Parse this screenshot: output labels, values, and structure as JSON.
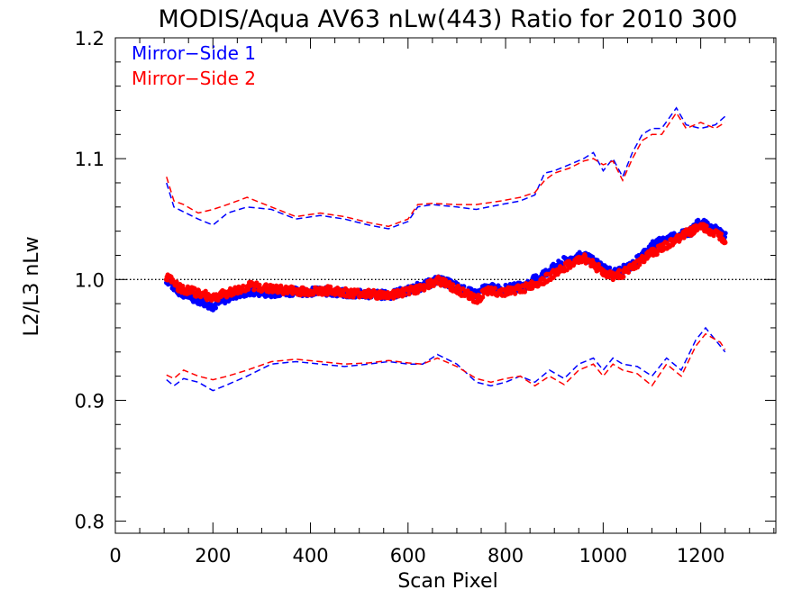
{
  "chart_data": {
    "type": "scatter",
    "title": "MODIS/Aqua AV63 nLw(443) Ratio for 2010 300",
    "xlabel": "Scan Pixel",
    "ylabel": "L2/L3 nLw",
    "xlim": [
      0,
      1354
    ],
    "ylim": [
      0.79,
      1.2
    ],
    "xticks": [
      0,
      200,
      400,
      600,
      800,
      1000,
      1200
    ],
    "xtick_labels": [
      "0",
      "200",
      "400",
      "600",
      "800",
      "1000",
      "1200"
    ],
    "yticks": [
      0.8,
      0.9,
      1.0,
      1.1,
      1.2
    ],
    "ytick_labels": [
      "0.8",
      "0.9",
      "1.0",
      "1.1",
      "1.2"
    ],
    "reference_line": {
      "y": 1.0,
      "style": "dotted",
      "color": "#000000"
    },
    "legend": {
      "position": "top-left",
      "entries": [
        "Mirror−Side 1",
        "Mirror−Side 2"
      ]
    },
    "colors": {
      "side1": "#0000ff",
      "side2": "#ff0000"
    },
    "series": [
      {
        "name": "Mirror−Side 1",
        "color": "#0000ff",
        "kind": "mean-points",
        "x": [
          105,
          130,
          160,
          200,
          240,
          280,
          320,
          360,
          400,
          440,
          480,
          520,
          560,
          600,
          640,
          660,
          690,
          720,
          740,
          760,
          800,
          840,
          880,
          920,
          960,
          980,
          1000,
          1020,
          1040,
          1060,
          1080,
          1100,
          1120,
          1140,
          1160,
          1180,
          1200,
          1220,
          1240,
          1250
        ],
        "y": [
          1.0,
          0.99,
          0.985,
          0.978,
          0.987,
          0.99,
          0.989,
          0.99,
          0.99,
          0.99,
          0.988,
          0.988,
          0.987,
          0.991,
          0.996,
          1.0,
          0.996,
          0.99,
          0.988,
          0.993,
          0.992,
          0.995,
          1.005,
          1.015,
          1.02,
          1.015,
          1.01,
          1.005,
          1.008,
          1.012,
          1.02,
          1.028,
          1.032,
          1.035,
          1.038,
          1.04,
          1.048,
          1.042,
          1.04,
          1.035
        ]
      },
      {
        "name": "Mirror−Side 2",
        "color": "#ff0000",
        "kind": "mean-points",
        "x": [
          105,
          130,
          160,
          200,
          240,
          280,
          320,
          360,
          400,
          440,
          480,
          520,
          560,
          600,
          640,
          660,
          690,
          720,
          740,
          760,
          800,
          840,
          880,
          920,
          960,
          980,
          1000,
          1020,
          1040,
          1060,
          1080,
          1100,
          1120,
          1140,
          1160,
          1180,
          1200,
          1220,
          1240,
          1250
        ],
        "y": [
          1.003,
          0.993,
          0.99,
          0.985,
          0.99,
          0.995,
          0.992,
          0.991,
          0.99,
          0.991,
          0.989,
          0.988,
          0.987,
          0.99,
          0.995,
          1.0,
          0.994,
          0.988,
          0.983,
          0.99,
          0.99,
          0.993,
          1.0,
          1.01,
          1.018,
          1.013,
          1.006,
          1.003,
          1.005,
          1.01,
          1.016,
          1.022,
          1.026,
          1.03,
          1.036,
          1.04,
          1.044,
          1.04,
          1.036,
          1.033
        ]
      },
      {
        "name": "",
        "color": "#0000ff",
        "kind": "upper-dashed",
        "x": [
          105,
          120,
          140,
          170,
          200,
          230,
          270,
          320,
          370,
          420,
          470,
          520,
          560,
          600,
          620,
          650,
          700,
          740,
          790,
          830,
          860,
          880,
          900,
          930,
          960,
          980,
          1000,
          1020,
          1040,
          1060,
          1080,
          1100,
          1120,
          1150,
          1170,
          1200,
          1230,
          1250
        ],
        "y": [
          1.08,
          1.06,
          1.056,
          1.05,
          1.045,
          1.055,
          1.06,
          1.058,
          1.05,
          1.053,
          1.05,
          1.045,
          1.042,
          1.048,
          1.06,
          1.062,
          1.06,
          1.058,
          1.062,
          1.065,
          1.07,
          1.088,
          1.09,
          1.095,
          1.1,
          1.105,
          1.09,
          1.1,
          1.085,
          1.105,
          1.12,
          1.125,
          1.125,
          1.142,
          1.128,
          1.125,
          1.128,
          1.135
        ]
      },
      {
        "name": "",
        "color": "#ff0000",
        "kind": "upper-dashed",
        "x": [
          105,
          120,
          140,
          170,
          200,
          230,
          270,
          320,
          370,
          420,
          470,
          520,
          560,
          600,
          620,
          650,
          700,
          740,
          790,
          830,
          860,
          880,
          900,
          930,
          960,
          980,
          1000,
          1020,
          1040,
          1060,
          1080,
          1100,
          1120,
          1150,
          1170,
          1200,
          1230,
          1250
        ],
        "y": [
          1.085,
          1.065,
          1.062,
          1.055,
          1.058,
          1.062,
          1.068,
          1.06,
          1.052,
          1.055,
          1.052,
          1.047,
          1.044,
          1.05,
          1.062,
          1.063,
          1.062,
          1.062,
          1.065,
          1.068,
          1.072,
          1.082,
          1.088,
          1.092,
          1.098,
          1.1,
          1.095,
          1.098,
          1.082,
          1.1,
          1.115,
          1.12,
          1.12,
          1.138,
          1.125,
          1.13,
          1.125,
          1.13
        ]
      },
      {
        "name": "",
        "color": "#0000ff",
        "kind": "lower-dashed",
        "x": [
          105,
          120,
          140,
          170,
          200,
          230,
          270,
          320,
          370,
          420,
          470,
          520,
          560,
          600,
          630,
          660,
          700,
          740,
          770,
          800,
          830,
          860,
          890,
          920,
          950,
          980,
          1000,
          1020,
          1040,
          1070,
          1100,
          1130,
          1160,
          1190,
          1210,
          1240,
          1250
        ],
        "y": [
          0.917,
          0.912,
          0.918,
          0.915,
          0.908,
          0.913,
          0.92,
          0.93,
          0.932,
          0.93,
          0.928,
          0.93,
          0.932,
          0.93,
          0.93,
          0.938,
          0.93,
          0.915,
          0.912,
          0.915,
          0.92,
          0.915,
          0.925,
          0.918,
          0.93,
          0.935,
          0.925,
          0.935,
          0.93,
          0.928,
          0.92,
          0.935,
          0.925,
          0.95,
          0.96,
          0.945,
          0.94
        ]
      },
      {
        "name": "",
        "color": "#ff0000",
        "kind": "lower-dashed",
        "x": [
          105,
          120,
          140,
          170,
          200,
          230,
          270,
          320,
          370,
          420,
          470,
          520,
          560,
          600,
          630,
          660,
          700,
          740,
          770,
          800,
          830,
          860,
          890,
          920,
          950,
          980,
          1000,
          1020,
          1040,
          1070,
          1100,
          1130,
          1160,
          1190,
          1210,
          1240,
          1250
        ],
        "y": [
          0.921,
          0.918,
          0.925,
          0.92,
          0.917,
          0.92,
          0.925,
          0.932,
          0.934,
          0.932,
          0.93,
          0.931,
          0.933,
          0.931,
          0.93,
          0.935,
          0.928,
          0.918,
          0.915,
          0.918,
          0.92,
          0.912,
          0.92,
          0.913,
          0.925,
          0.93,
          0.92,
          0.93,
          0.925,
          0.922,
          0.912,
          0.93,
          0.92,
          0.945,
          0.955,
          0.948,
          0.942
        ]
      }
    ]
  }
}
